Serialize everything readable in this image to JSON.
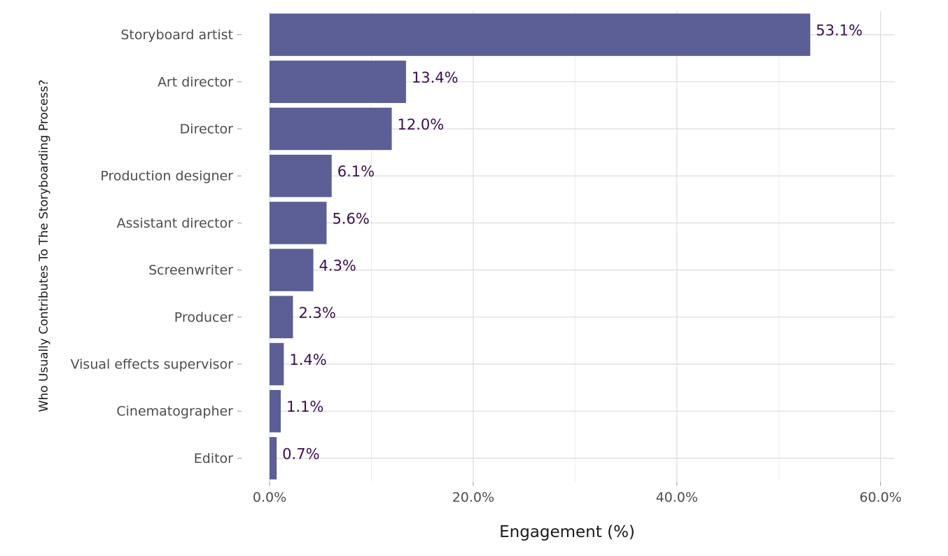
{
  "chart_data": {
    "type": "bar",
    "orientation": "horizontal",
    "categories": [
      "Storyboard artist",
      "Art director",
      "Director",
      "Production designer",
      "Assistant director",
      "Screenwriter",
      "Producer",
      "Visual effects supervisor",
      "Cinematographer",
      "Editor"
    ],
    "values": [
      53.1,
      13.4,
      12.0,
      6.1,
      5.6,
      4.3,
      2.3,
      1.4,
      1.1,
      0.7
    ],
    "data_labels": [
      "53.1%",
      "13.4%",
      "12.0%",
      "6.1%",
      "5.6%",
      "4.3%",
      "2.3%",
      "1.4%",
      "1.1%",
      "0.7%"
    ],
    "xlabel": "Engagement (%)",
    "ylabel": "Who Usually Contributes To The Storyboarding Process?",
    "xlim": [
      0,
      61.4
    ],
    "x_ticks": [
      0,
      20,
      40,
      60
    ],
    "x_tick_labels": [
      "0.0%",
      "20.0%",
      "40.0%",
      "60.0%"
    ],
    "grid": true,
    "bar_color": "#5b5f95",
    "label_color": "#3b0f4f"
  }
}
